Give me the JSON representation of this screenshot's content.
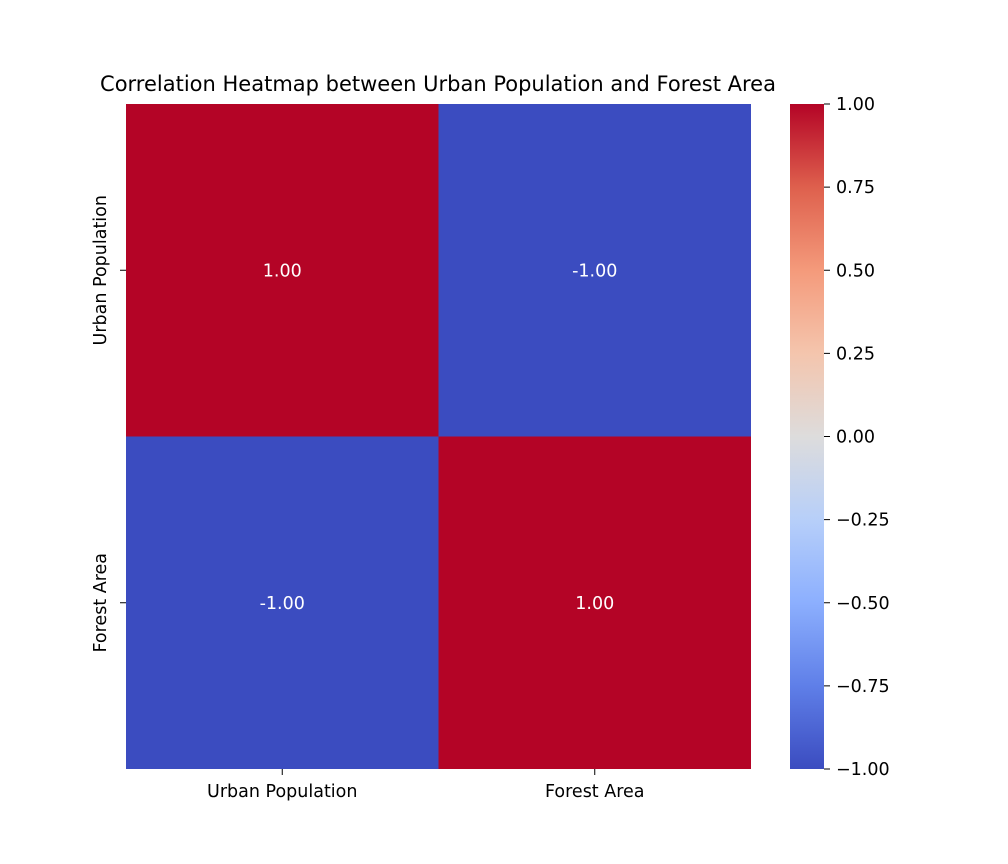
{
  "chart_data": {
    "type": "heatmap",
    "title": "Correlation Heatmap between Urban Population and Forest Area",
    "x_categories": [
      "Urban Population",
      "Forest Area"
    ],
    "y_categories": [
      "Urban Population",
      "Forest Area"
    ],
    "values": [
      [
        1.0,
        -1.0
      ],
      [
        -1.0,
        1.0
      ]
    ],
    "annotations": [
      [
        "1.00",
        "-1.00"
      ],
      [
        "-1.00",
        "1.00"
      ]
    ],
    "colormap": "coolwarm",
    "color_low": "#3b4cc0",
    "color_high": "#b40426",
    "vmin": -1.0,
    "vmax": 1.0,
    "colorbar_ticks": [
      "1.00",
      "0.75",
      "0.50",
      "0.25",
      "0.00",
      "−0.25",
      "−0.50",
      "−0.75",
      "−1.00"
    ],
    "colorbar_tick_values": [
      1.0,
      0.75,
      0.5,
      0.25,
      0.0,
      -0.25,
      -0.5,
      -0.75,
      -1.0
    ],
    "grid": false
  }
}
